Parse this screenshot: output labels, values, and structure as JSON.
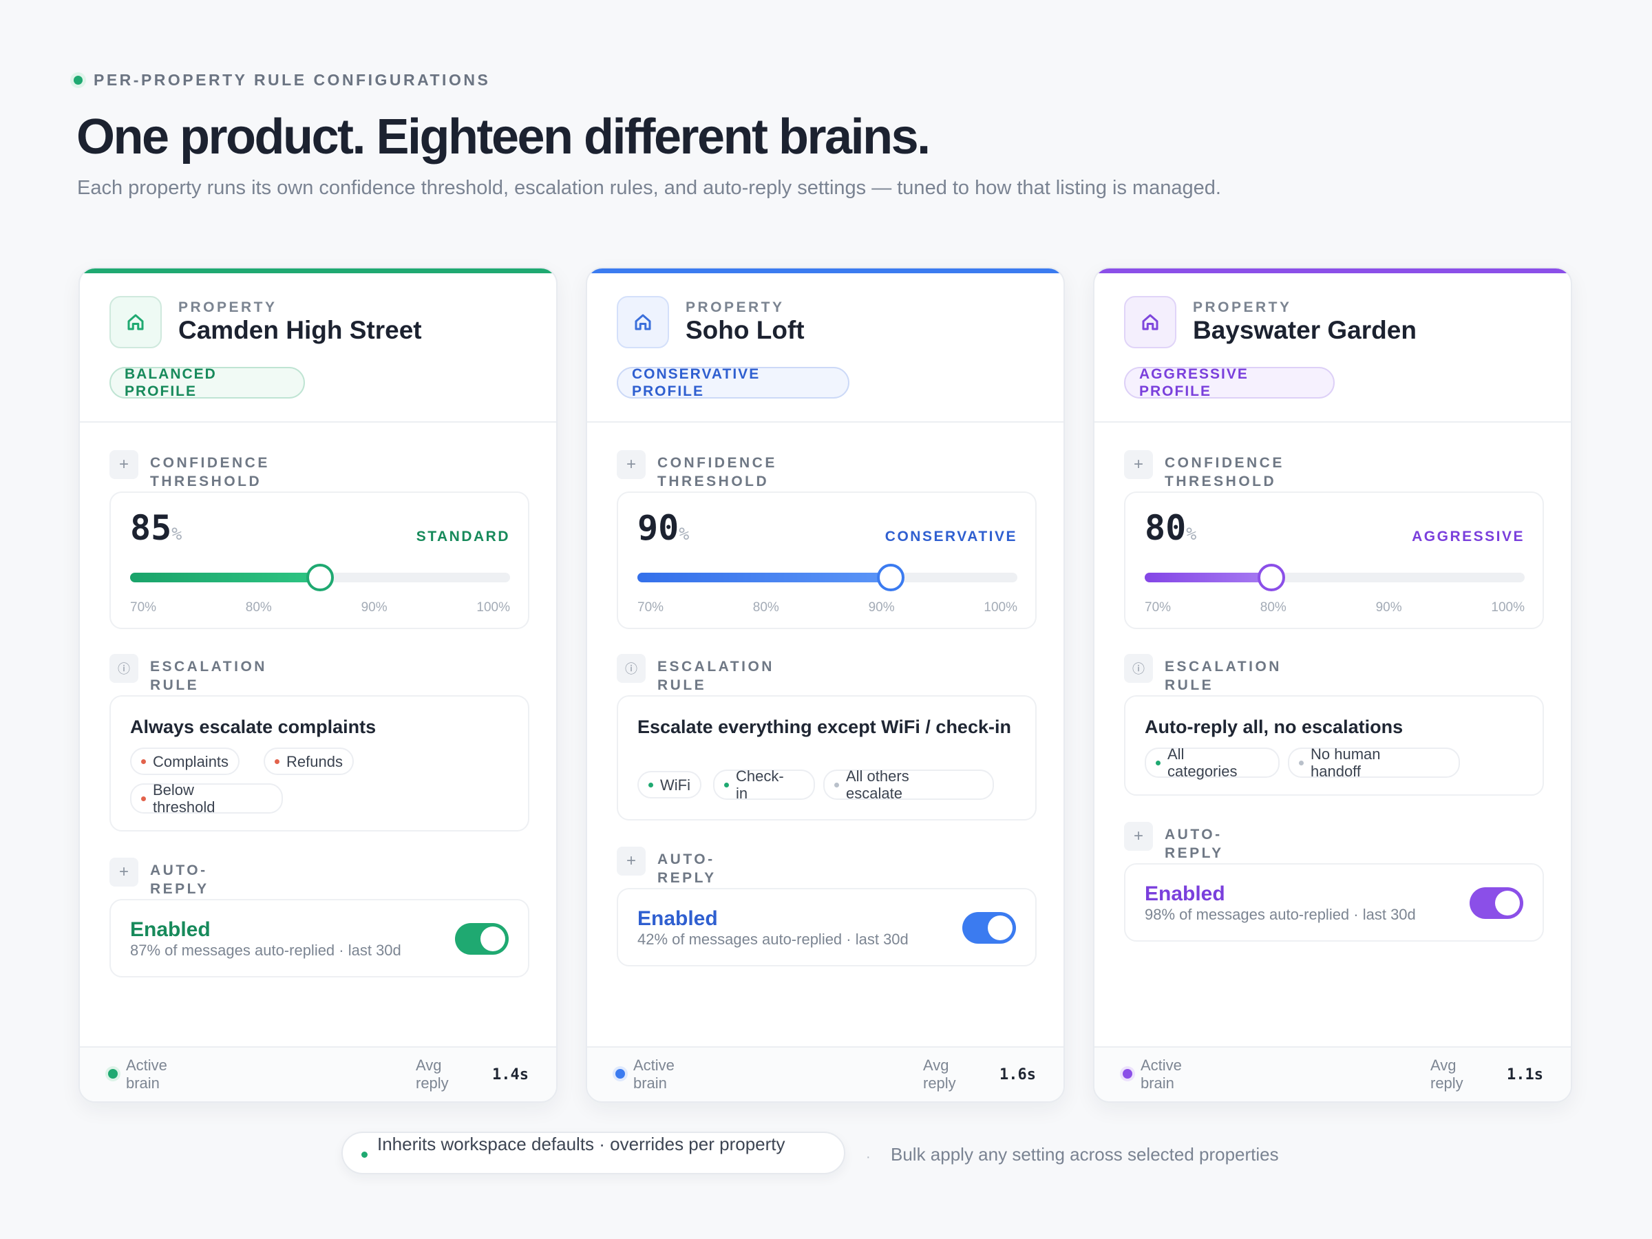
{
  "header": {
    "eyebrow": "PER-PROPERTY RULE CONFIGURATIONS",
    "title": "One product. Eighteen different brains.",
    "subtitle": "Each property runs its own confidence threshold, escalation rules, and auto-reply settings — tuned to how that listing is managed."
  },
  "labels": {
    "property_kicker": "PROPERTY",
    "confidence": "CONFIDENCE THRESHOLD",
    "escalation": "ESCALATION RULE",
    "auto_reply": "AUTO-REPLY",
    "active_brain": "Active brain",
    "avg_reply": "Avg reply",
    "pct_sign": "%",
    "ticks": [
      "70%",
      "80%",
      "90%",
      "100%"
    ]
  },
  "cards": [
    {
      "name": "Camden High Street",
      "profile": "BALANCED PROFILE",
      "accent": "#1fa971",
      "icon": "home-icon",
      "confidence": 85,
      "mode": "STANDARD",
      "escalation_title": "Always escalate complaints",
      "chips": [
        "Complaints",
        "Refunds",
        "Below threshold"
      ],
      "auto_state": "Enabled",
      "auto_rate_percent": 87,
      "auto_sub": "87% of messages auto-replied · last 30d",
      "avg_reply": "1.4s"
    },
    {
      "name": "Soho Loft",
      "profile": "CONSERVATIVE PROFILE",
      "accent": "#3b7bf0",
      "icon": "home-icon",
      "confidence": 90,
      "mode": "CONSERVATIVE",
      "escalation_title": "Escalate everything except WiFi / check-in",
      "chips": [
        "WiFi",
        "Check-in",
        "All others escalate"
      ],
      "auto_state": "Enabled",
      "auto_rate_percent": 42,
      "auto_sub": "42% of messages auto-replied · last 30d",
      "avg_reply": "1.6s"
    },
    {
      "name": "Bayswater Garden",
      "profile": "AGGRESSIVE PROFILE",
      "accent": "#8b4fe8",
      "icon": "home-icon",
      "confidence": 80,
      "mode": "AGGRESSIVE",
      "escalation_title": "Auto-reply all, no escalations",
      "chips": [
        "All categories",
        "No human handoff"
      ],
      "auto_state": "Enabled",
      "auto_rate_percent": 98,
      "auto_sub": "98% of messages auto-replied · last 30d",
      "avg_reply": "1.1s"
    }
  ],
  "footer": {
    "note_left": "Inherits workspace defaults · overrides per property",
    "separator": "·",
    "note_right": "Bulk apply any setting across selected properties"
  },
  "colors": {
    "green": "#1fa971",
    "blue": "#3b7bf0",
    "purple": "#8b4fe8",
    "chip_red": "#e2624b",
    "chip_gray": "#b9c0ca"
  }
}
